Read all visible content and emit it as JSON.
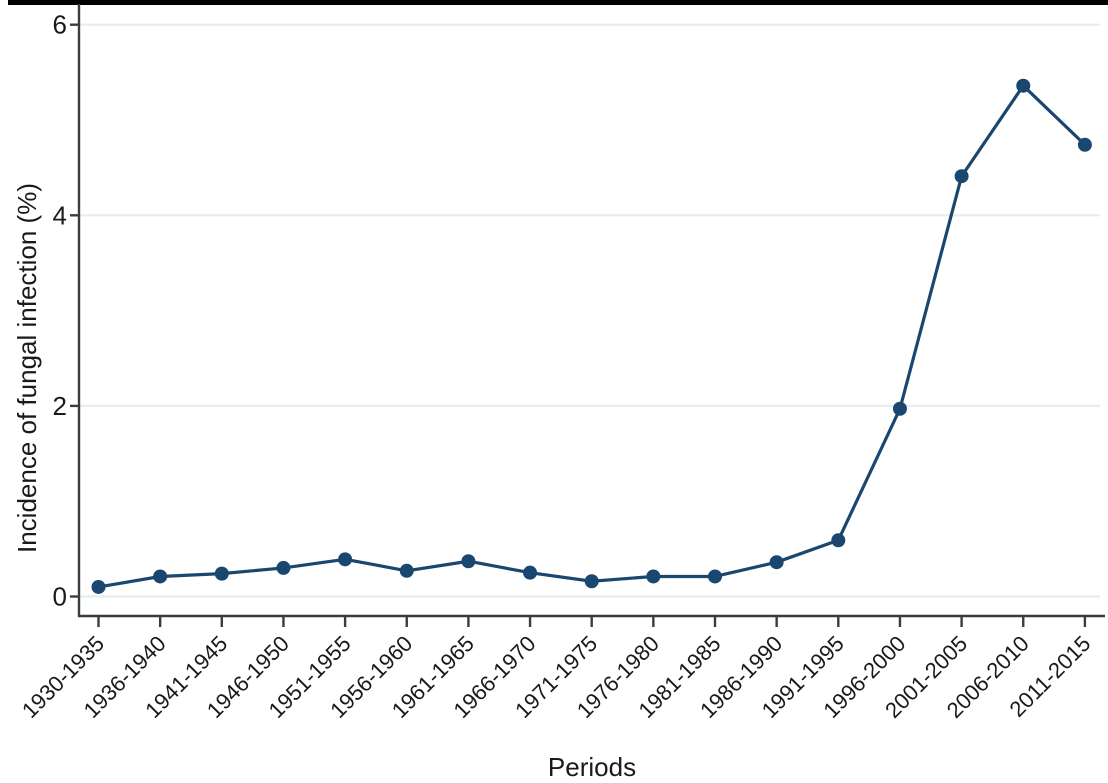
{
  "chart_data": {
    "type": "line",
    "title": "",
    "xlabel": "Periods",
    "ylabel": "Incidence of fungal infection (%)",
    "categories": [
      "1930-1935",
      "1936-1940",
      "1941-1945",
      "1946-1950",
      "1951-1955",
      "1956-1960",
      "1961-1965",
      "1966-1970",
      "1971-1975",
      "1976-1980",
      "1981-1985",
      "1986-1990",
      "1991-1995",
      "1996-2000",
      "2001-2005",
      "2006-2010",
      "2011-2015"
    ],
    "values": [
      0.1,
      0.21,
      0.24,
      0.3,
      0.39,
      0.27,
      0.37,
      0.25,
      0.16,
      0.21,
      0.21,
      0.36,
      0.59,
      1.97,
      4.41,
      5.36,
      4.74
    ],
    "yticks": [
      0,
      2,
      4,
      6
    ],
    "ytick_labels": [
      "0",
      "2",
      "4",
      "6"
    ],
    "ylim": [
      -0.2,
      6.2
    ],
    "grid": true,
    "legend": "none",
    "series_name": "Incidence of fungal infection",
    "colors": {
      "line": "#1a476f",
      "marker": "#1a476f",
      "grid": "#e4edf0",
      "axis": "#3c3c3c",
      "text": "#1a1a1a",
      "background": "#ffffff",
      "top_border": "#000000"
    }
  }
}
